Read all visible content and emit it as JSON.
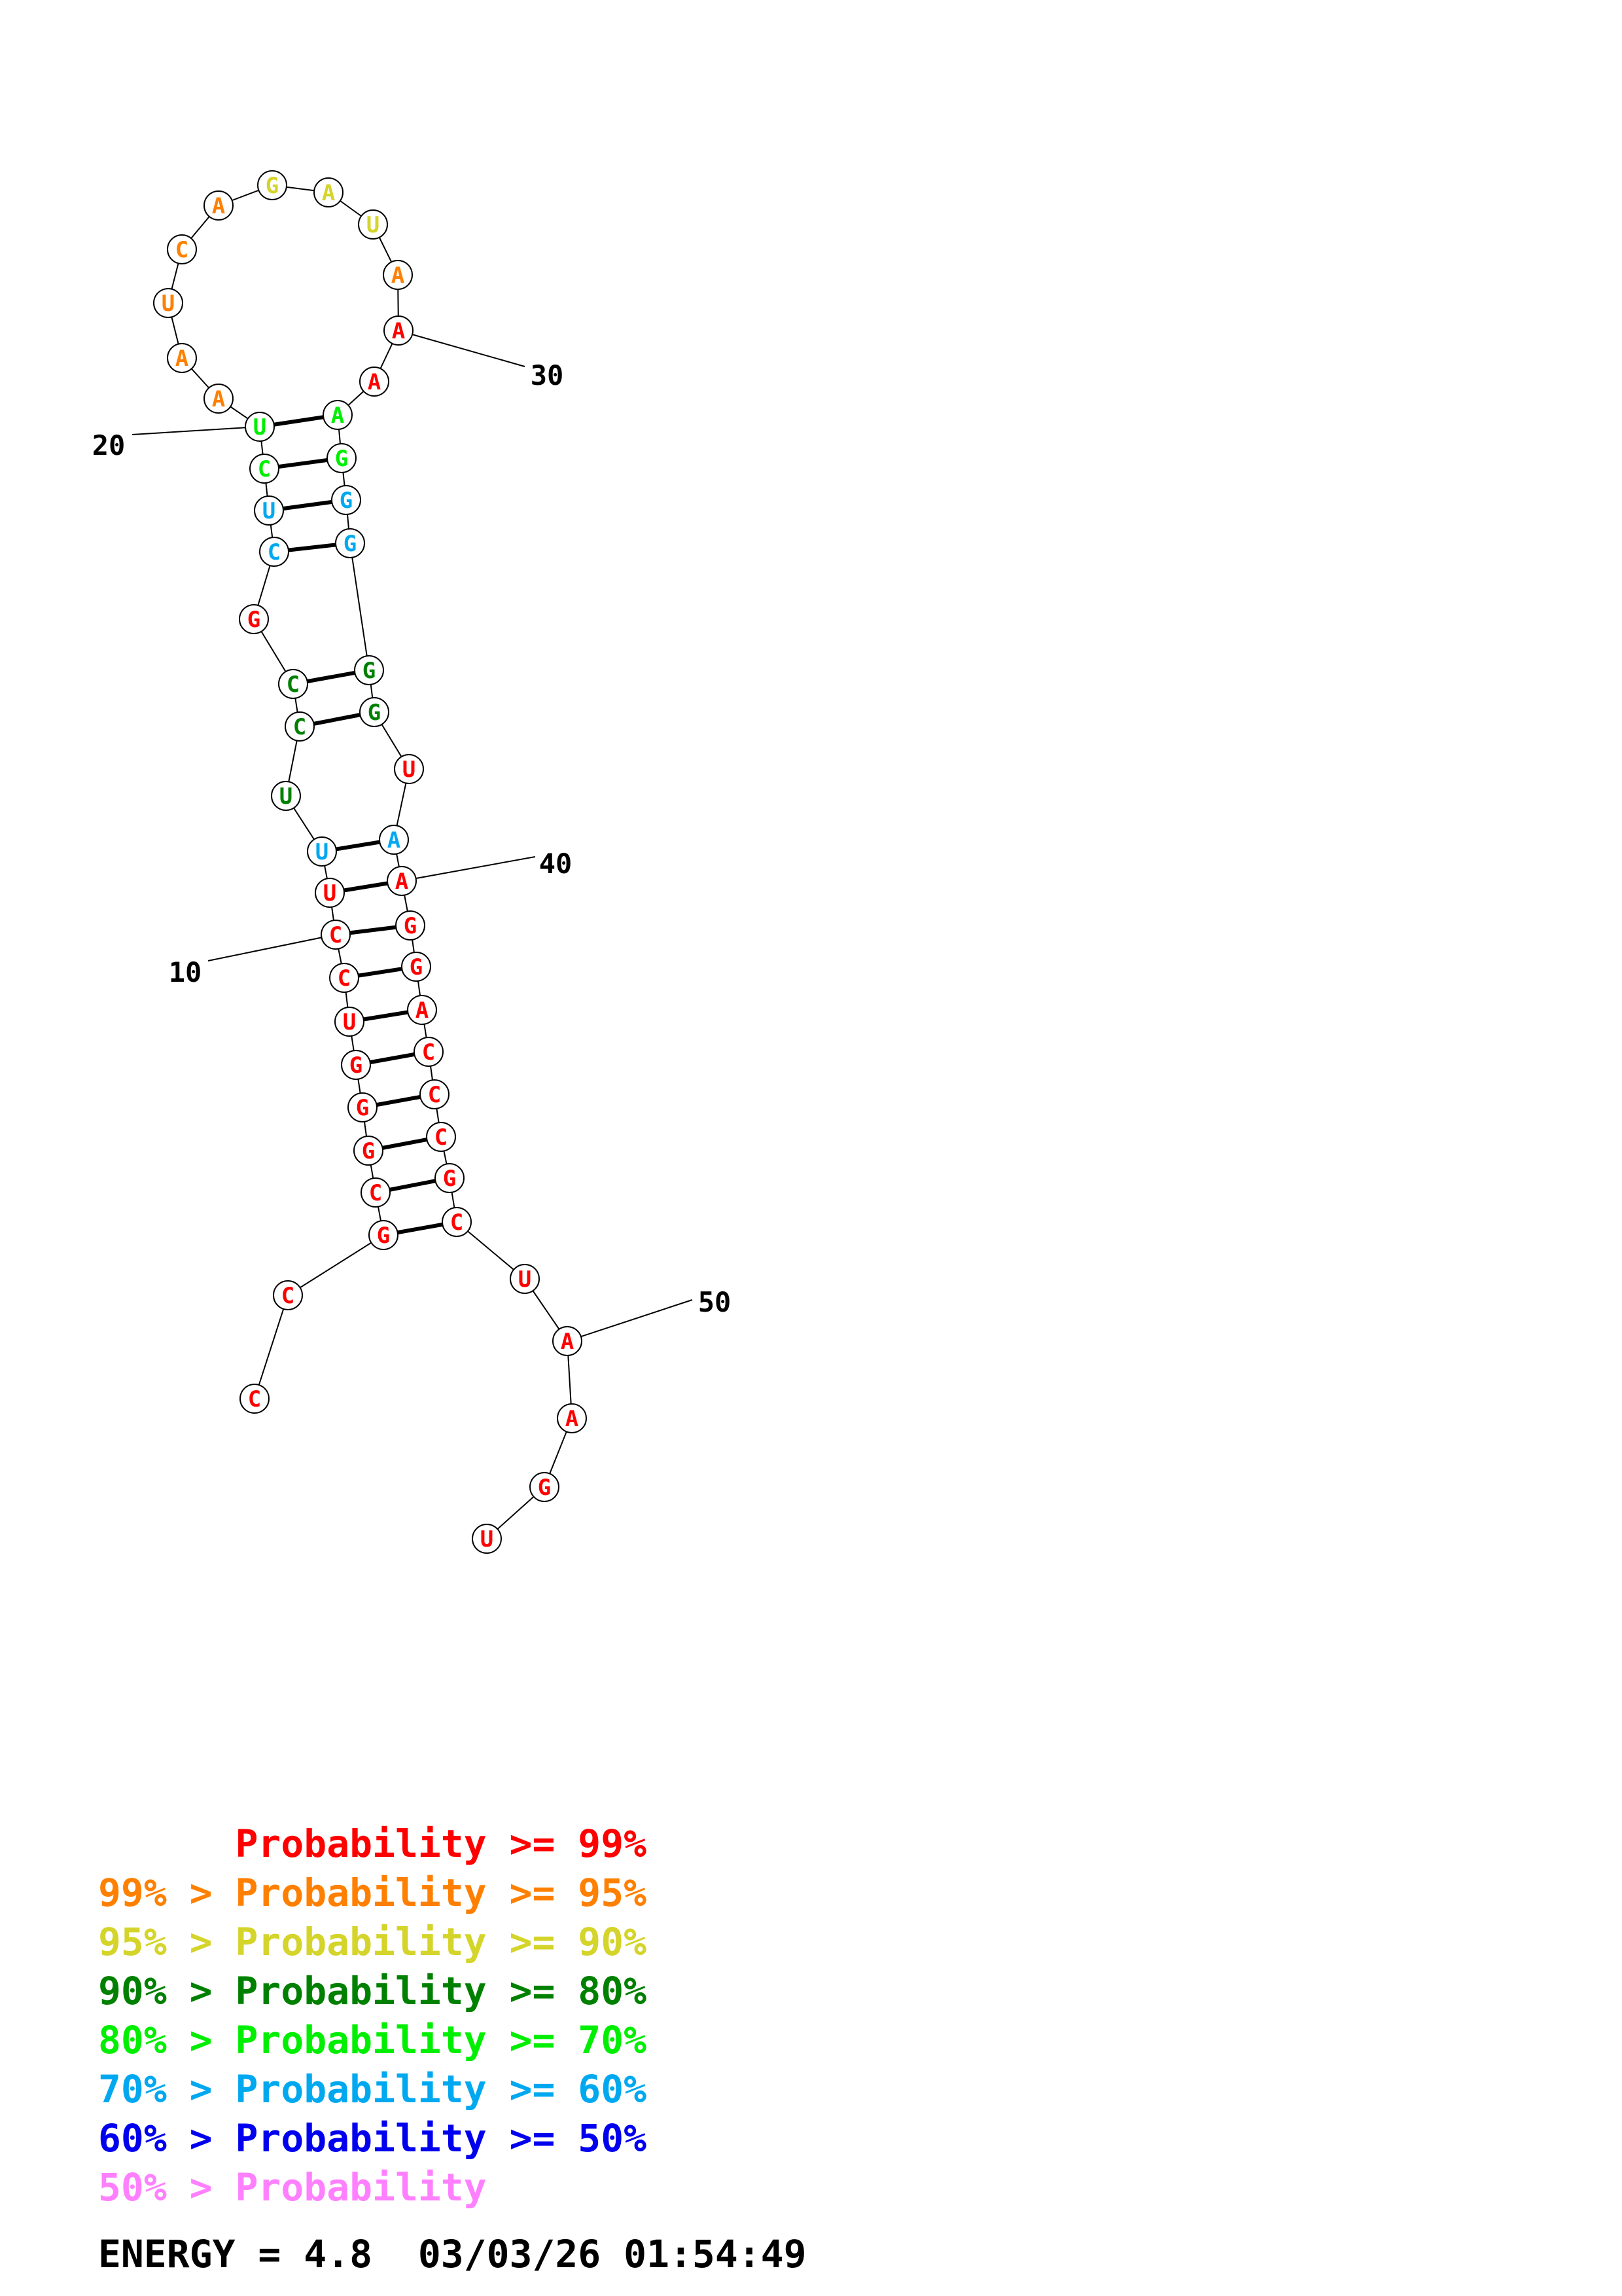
{
  "structure": {
    "sequence": [
      "C",
      "C",
      "G",
      "C",
      "G",
      "G",
      "G",
      "U",
      "C",
      "C",
      "U",
      "U",
      "U",
      "C",
      "C",
      "G",
      "C",
      "U",
      "C",
      "U",
      "A",
      "A",
      "U",
      "C",
      "A",
      "G",
      "A",
      "U",
      "A",
      "A",
      "A",
      "A",
      "G",
      "G",
      "G",
      "G",
      "G",
      "U",
      "A",
      "A",
      "G",
      "G",
      "A",
      "C",
      "C",
      "C",
      "G",
      "C",
      "U",
      "A",
      "A",
      "G",
      "U"
    ],
    "probability_class": [
      0,
      0,
      0,
      0,
      0,
      0,
      0,
      0,
      0,
      0,
      0,
      5,
      3,
      3,
      3,
      0,
      5,
      5,
      4,
      4,
      1,
      1,
      1,
      1,
      1,
      2,
      2,
      2,
      1,
      0,
      0,
      4,
      4,
      5,
      5,
      3,
      3,
      0,
      5,
      0,
      0,
      0,
      0,
      0,
      0,
      0,
      0,
      0,
      0,
      0,
      0,
      0,
      0
    ],
    "pairs": [
      [
        3,
        48
      ],
      [
        4,
        47
      ],
      [
        5,
        46
      ],
      [
        6,
        45
      ],
      [
        7,
        44
      ],
      [
        8,
        43
      ],
      [
        9,
        42
      ],
      [
        10,
        41
      ],
      [
        11,
        40
      ],
      [
        12,
        39
      ],
      [
        14,
        37
      ],
      [
        15,
        36
      ],
      [
        17,
        35
      ],
      [
        18,
        34
      ],
      [
        19,
        33
      ],
      [
        20,
        32
      ]
    ],
    "index_labels": [
      {
        "position": 10,
        "text": "10"
      },
      {
        "position": 20,
        "text": "20"
      },
      {
        "position": 30,
        "text": "30"
      },
      {
        "position": 40,
        "text": "40"
      },
      {
        "position": 50,
        "text": "50"
      }
    ]
  },
  "legend": [
    {
      "prefix": "    ",
      "text": "Probability >= 99%",
      "color": "#ff0000"
    },
    {
      "prefix": "99% > ",
      "text": "Probability >= 95%",
      "color": "#ff8000"
    },
    {
      "prefix": "95% > ",
      "text": "Probability >= 90%",
      "color": "#d4d42a"
    },
    {
      "prefix": "90% > ",
      "text": "Probability >= 80%",
      "color": "#008000"
    },
    {
      "prefix": "80% > ",
      "text": "Probability >= 70%",
      "color": "#00ee00"
    },
    {
      "prefix": "70% > ",
      "text": "Probability >= 60%",
      "color": "#00a8f0"
    },
    {
      "prefix": "60% > ",
      "text": "Probability >= 50%",
      "color": "#0000ee"
    },
    {
      "prefix": "50% > ",
      "text": "Probability",
      "color": "#ff80ff"
    }
  ],
  "footer": {
    "energy": "ENERGY = 4.8",
    "timestamp": "03/03/26 01:54:49"
  }
}
